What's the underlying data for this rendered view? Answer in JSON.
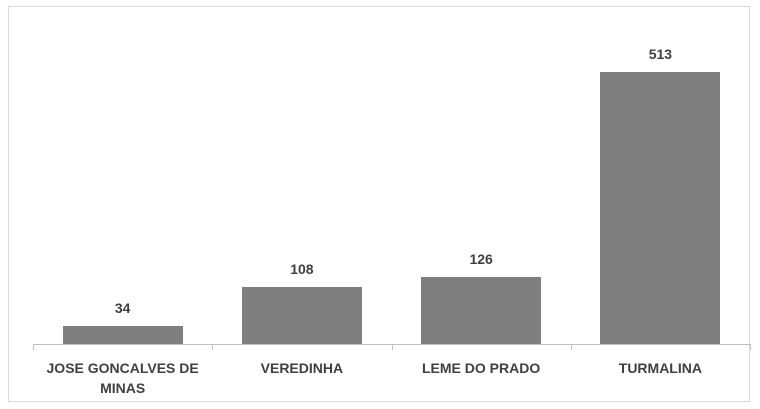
{
  "chart_data": {
    "type": "bar",
    "categories": [
      "JOSE GONCALVES DE MINAS",
      "VEREDINHA",
      "LEME DO PRADO",
      "TURMALINA"
    ],
    "values": [
      34,
      108,
      126,
      513
    ],
    "color": "#7f7f7f"
  }
}
